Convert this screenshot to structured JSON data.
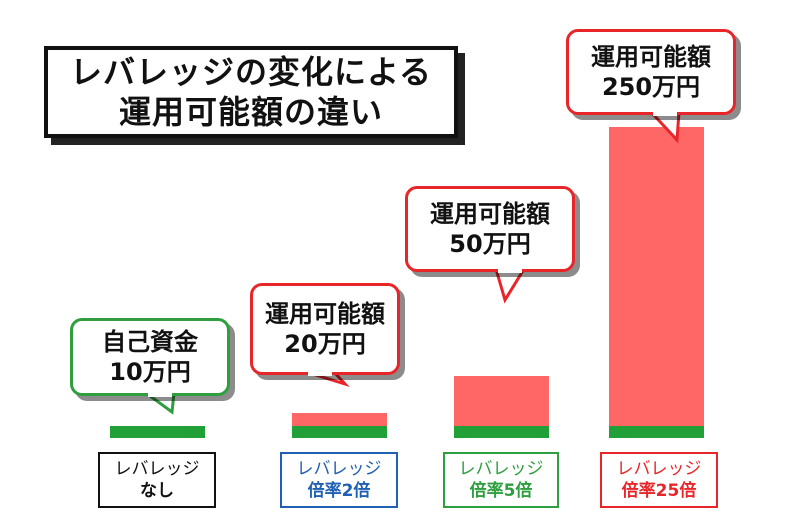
{
  "title_lines": [
    "レバレッジの変化による",
    "運用可能額の違い"
  ],
  "colors": {
    "own_capital": "#22a038",
    "leverage_extra": "#ff6666"
  },
  "chart_data": {
    "type": "bar",
    "stacked": true,
    "title": "レバレッジの変化による運用可能額の違い",
    "unit": "万円",
    "categories": [
      "レバレッジなし",
      "レバレッジ倍率2倍",
      "レバレッジ倍率5倍",
      "レバレッジ倍率25倍"
    ],
    "series": [
      {
        "color": "#22a038",
        "values": [
          10,
          10,
          10,
          10
        ]
      },
      {
        "color": "#ff6666",
        "values": [
          0,
          10,
          40,
          240
        ]
      }
    ],
    "totals": [
      10,
      20,
      50,
      250
    ],
    "ylim": [
      0,
      250
    ],
    "grid": false
  },
  "bars": [
    {
      "label_line1": "レバレッジ",
      "label_line2": "なし",
      "color": "#111111",
      "callout_line1": "自己資金",
      "callout_line2": "10万円"
    },
    {
      "label_line1": "レバレッジ",
      "label_line2": "倍率2倍",
      "color": "#1f5fb4",
      "callout_line1": "運用可能額",
      "callout_line2": "20万円"
    },
    {
      "label_line1": "レバレッジ",
      "label_line2": "倍率5倍",
      "color": "#2e9e3e",
      "callout_line1": "運用可能額",
      "callout_line2": "50万円"
    },
    {
      "label_line1": "レバレッジ",
      "label_line2": "倍率25倍",
      "color": "#e8262a",
      "callout_line1": "運用可能額",
      "callout_line2": "250万円"
    }
  ]
}
